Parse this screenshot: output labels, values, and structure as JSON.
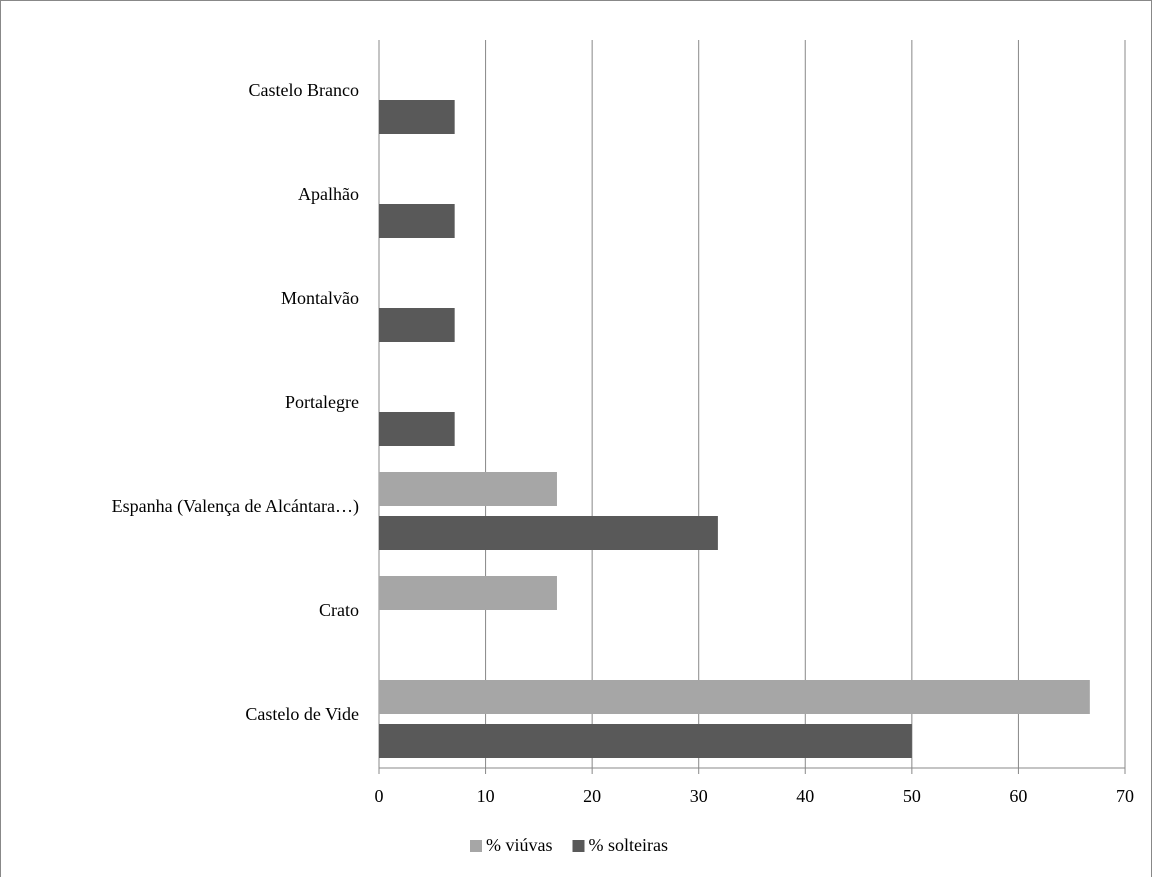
{
  "chart_data": {
    "type": "bar",
    "orientation": "horizontal",
    "categories": [
      "Castelo Branco",
      "Apalhão",
      "Montalvão",
      "Portalegre",
      "Espanha (Valença de Alcántara…)",
      "Crato",
      "Castelo de Vide"
    ],
    "series": [
      {
        "name": "% viúvas",
        "color": "#a6a6a6",
        "values": [
          null,
          null,
          null,
          null,
          16.7,
          16.7,
          66.7
        ]
      },
      {
        "name": "% solteiras",
        "color": "#595959",
        "values": [
          7.1,
          7.1,
          7.1,
          7.1,
          31.8,
          null,
          50
        ]
      }
    ],
    "xlim": [
      0,
      70
    ],
    "xticks": [
      0,
      10,
      20,
      30,
      40,
      50,
      60,
      70
    ],
    "grid": true,
    "legend": "bottom"
  }
}
